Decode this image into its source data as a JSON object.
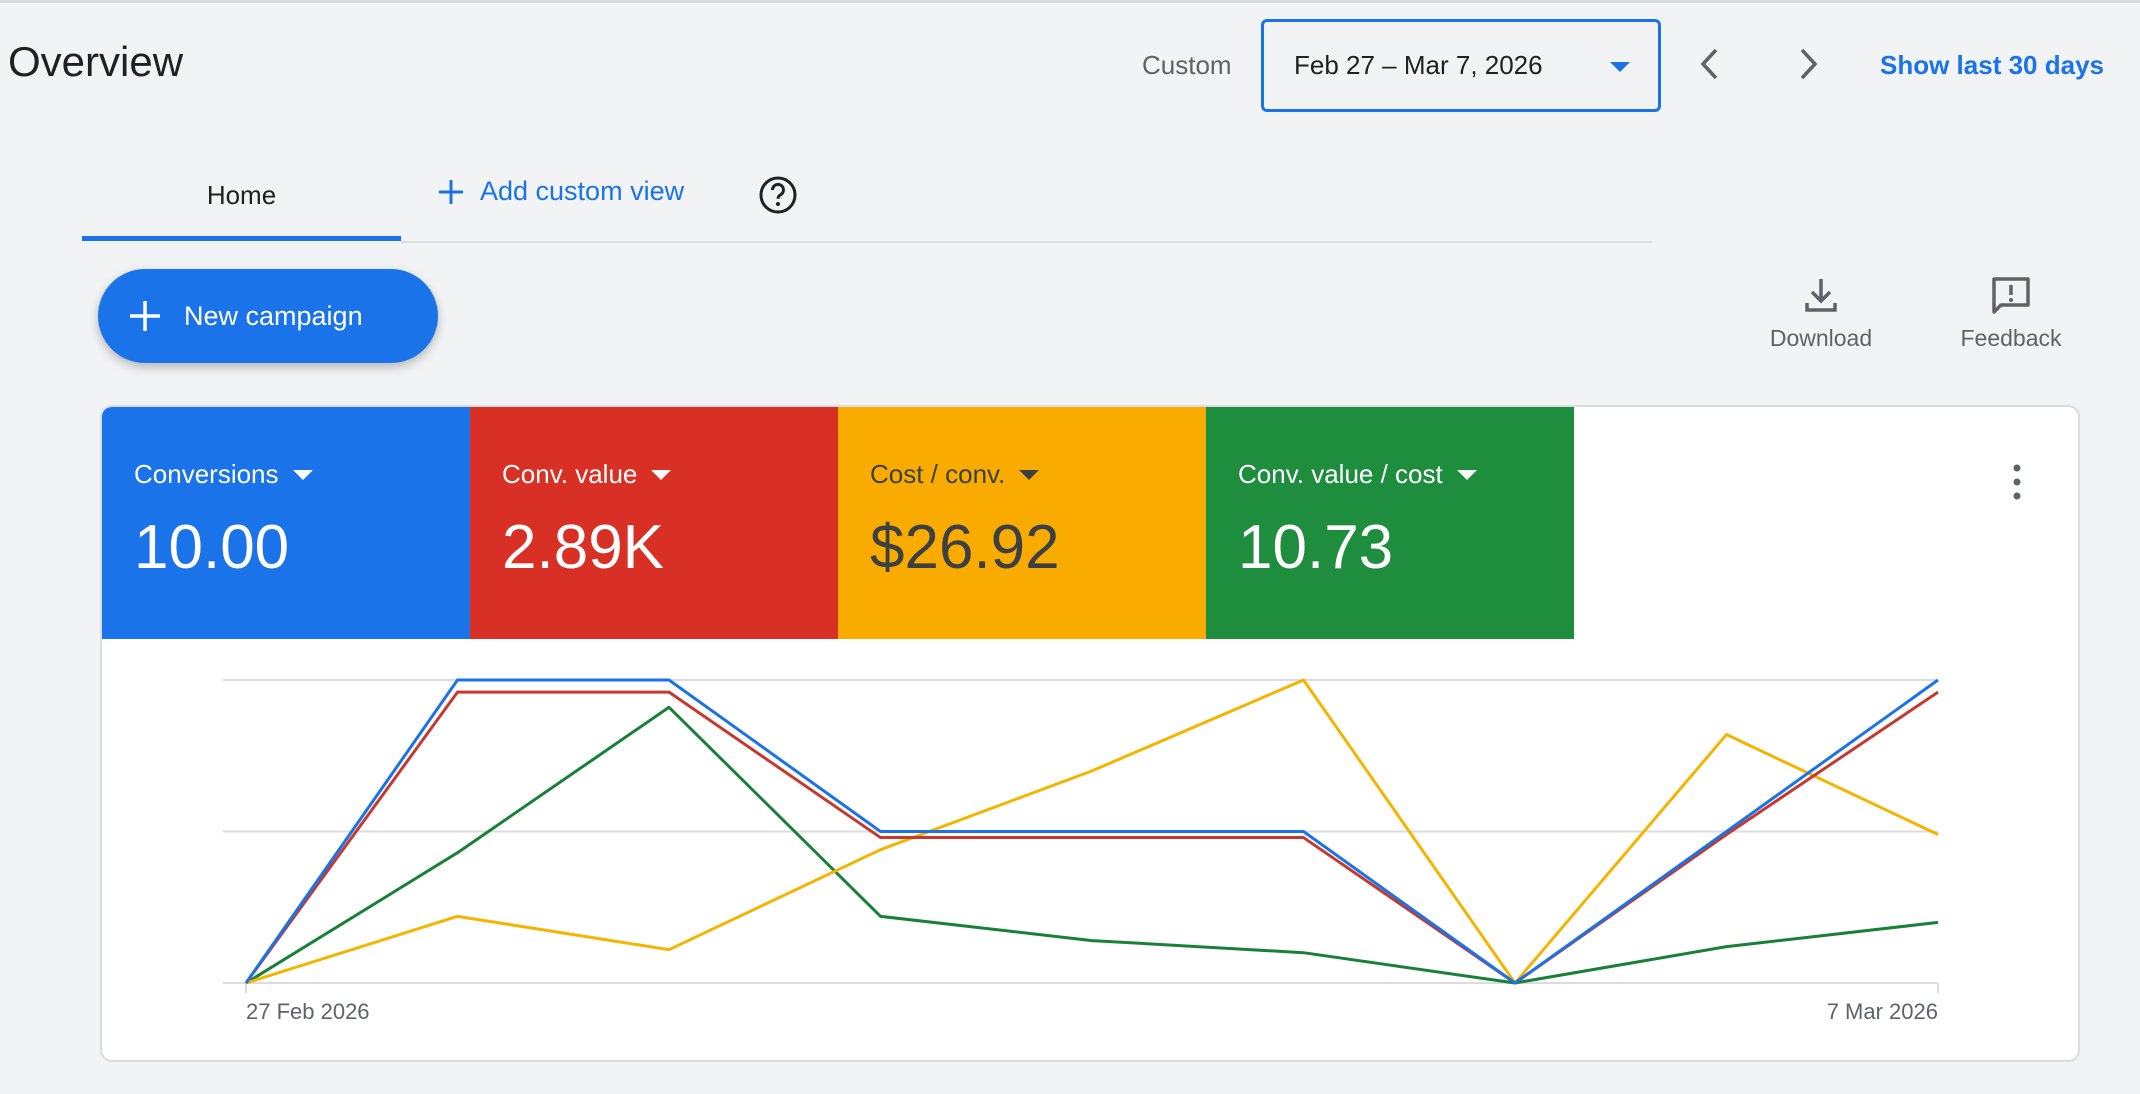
{
  "header": {
    "title": "Overview",
    "range_label": "Custom",
    "date_range": "Feb 27 – Mar 7, 2026",
    "show_last_label": "Show last 30 days"
  },
  "tabs": {
    "home": "Home",
    "add_custom_view": "Add custom view"
  },
  "actions": {
    "new_campaign": "New campaign",
    "download": "Download",
    "feedback": "Feedback"
  },
  "metrics": [
    {
      "label": "Conversions",
      "value": "10.00",
      "color": "#1a73e8"
    },
    {
      "label": "Conv. value",
      "value": "2.89K",
      "color": "#d93025"
    },
    {
      "label": "Cost / conv.",
      "value": "$26.92",
      "color": "#f9ab00"
    },
    {
      "label": "Conv. value / cost",
      "value": "10.73",
      "color": "#1e8e3e"
    }
  ],
  "chart_data": {
    "type": "line",
    "x": [
      "27 Feb 2026",
      "28 Feb 2026",
      "1 Mar 2026",
      "2 Mar 2026",
      "3 Mar 2026",
      "4 Mar 2026",
      "5 Mar 2026",
      "6 Mar 2026",
      "7 Mar 2026"
    ],
    "x_tick_labels": [
      "27 Feb 2026",
      "7 Mar 2026"
    ],
    "grid": true,
    "note_scale": "each series drawn on its own relative scale (0–1 of chart height)",
    "series": [
      {
        "name": "Conversions",
        "color": "#1a73e8",
        "values": [
          0,
          1,
          1,
          0.5,
          0.5,
          0.5,
          0,
          0.5,
          1
        ]
      },
      {
        "name": "Conv. value",
        "color": "#c5392f",
        "values": [
          0,
          0.96,
          0.96,
          0.48,
          0.48,
          0.48,
          0,
          0.49,
          0.96
        ]
      },
      {
        "name": "Cost / conv.",
        "color": "#f4b400",
        "values": [
          0,
          0.22,
          0.11,
          0.44,
          0.7,
          1.0,
          0,
          0.82,
          0.49
        ]
      },
      {
        "name": "Conv. value / cost",
        "color": "#188038",
        "values": [
          0,
          0.43,
          0.91,
          0.22,
          0.14,
          0.1,
          0,
          0.12,
          0.2
        ]
      }
    ]
  }
}
